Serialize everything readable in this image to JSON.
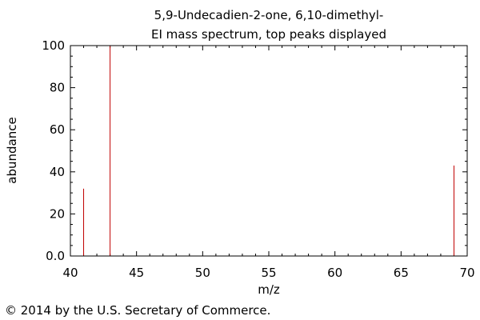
{
  "chart_data": {
    "type": "bar",
    "title": "5,9-Undecadien-2-one, 6,10-dimethyl-",
    "subtitle": "EI mass spectrum, top peaks displayed",
    "xlabel": "m/z",
    "ylabel": "abundance",
    "xlim": [
      40,
      70
    ],
    "ylim": [
      0,
      100
    ],
    "x_ticks": [
      "40",
      "45",
      "50",
      "55",
      "60",
      "65",
      "70"
    ],
    "y_ticks": [
      "0.0",
      "20",
      "40",
      "60",
      "80",
      "100"
    ],
    "peaks": [
      {
        "mz": 41,
        "abundance": 32
      },
      {
        "mz": 43,
        "abundance": 100
      },
      {
        "mz": 69,
        "abundance": 43
      }
    ],
    "bar_color": "#c00000",
    "grid": false,
    "legend": "none"
  },
  "footer": {
    "copyright": "© 2014 by the U.S. Secretary of Commerce."
  }
}
